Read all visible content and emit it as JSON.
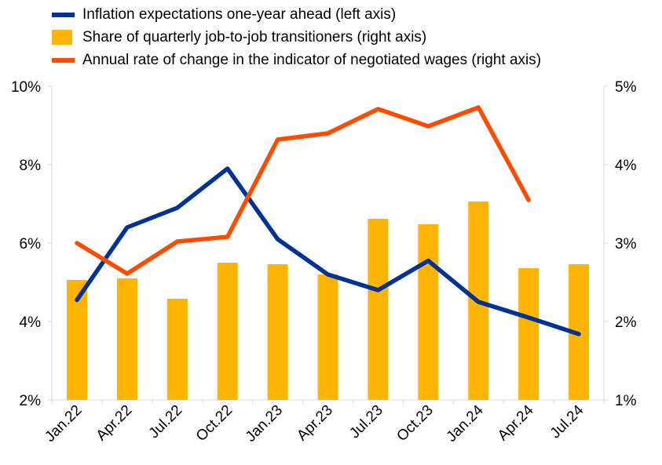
{
  "chart_data": {
    "type": "bar",
    "categories": [
      "Jan.22",
      "Apr.22",
      "Jul.22",
      "Oct.22",
      "Jan.23",
      "Apr.23",
      "Jul.23",
      "Oct.23",
      "Jan.24",
      "Apr.24",
      "Jul.24"
    ],
    "left_axis": {
      "min": 2,
      "max": 10,
      "ticks": [
        2,
        4,
        6,
        8,
        10
      ],
      "tick_labels": [
        "2%",
        "4%",
        "6%",
        "8%",
        "10%"
      ]
    },
    "right_axis": {
      "min": 1,
      "max": 5,
      "ticks": [
        1,
        2,
        3,
        4,
        5
      ],
      "tick_labels": [
        "1%",
        "2%",
        "3%",
        "4%",
        "5%"
      ]
    },
    "series": [
      {
        "name": "Inflation expectations one-year ahead (left axis)",
        "kind": "line",
        "axis": "left",
        "color": "#003299",
        "values": [
          4.55,
          6.4,
          6.9,
          7.9,
          6.1,
          5.2,
          4.8,
          5.55,
          4.5,
          4.1,
          3.68
        ]
      },
      {
        "name": "Share of quarterly job-to-job transitioners (right axis)",
        "kind": "bar",
        "axis": "right",
        "color": "#FFB400",
        "values": [
          2.53,
          2.55,
          2.29,
          2.75,
          2.73,
          2.6,
          3.31,
          3.24,
          3.53,
          2.68,
          2.73
        ]
      },
      {
        "name": "Annual rate of change in the indicator of negotiated wages (right axis)",
        "kind": "line",
        "axis": "right",
        "color": "#FF4B00",
        "values": [
          3.0,
          2.61,
          3.02,
          3.08,
          4.32,
          4.4,
          4.71,
          4.49,
          4.73,
          3.55,
          null
        ]
      }
    ],
    "legend_position": "top-left",
    "grid": false
  }
}
